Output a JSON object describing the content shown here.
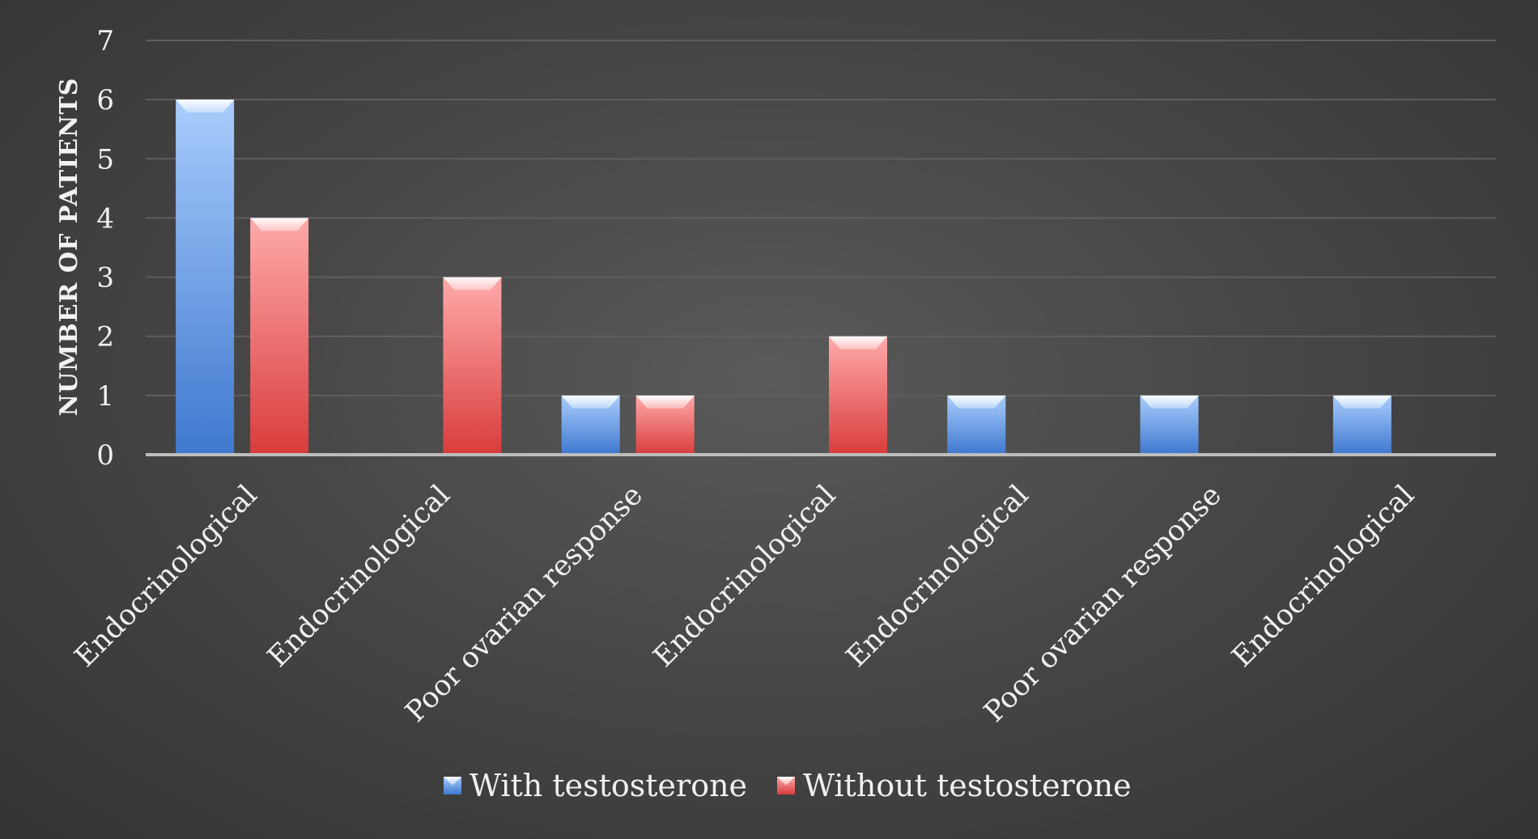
{
  "chart_data": {
    "type": "bar",
    "title": "",
    "xlabel": "",
    "ylabel": "NUMBER OF PATIENTS",
    "ylim": [
      0,
      7
    ],
    "yticks": [
      0,
      1,
      2,
      3,
      4,
      5,
      6,
      7
    ],
    "grid": true,
    "legend_position": "bottom",
    "categories": [
      "Endocrinological",
      "Endocrinological",
      "Poor ovarian response",
      "Endocrinological",
      "Endocrinological",
      "Poor ovarian response",
      "Endocrinological"
    ],
    "series": [
      {
        "name": "With testosterone",
        "values": [
          6,
          0,
          1,
          0,
          1,
          1,
          1
        ],
        "color": "#4f86d8"
      },
      {
        "name": "Without testosterone",
        "values": [
          4,
          3,
          1,
          2,
          0,
          0,
          0
        ],
        "color": "#e05c5c"
      }
    ],
    "colors": {
      "background": "#444444",
      "gridline": "#5e5e5e",
      "axis": "#bdbdbd",
      "text": "#f0f0f0"
    }
  }
}
